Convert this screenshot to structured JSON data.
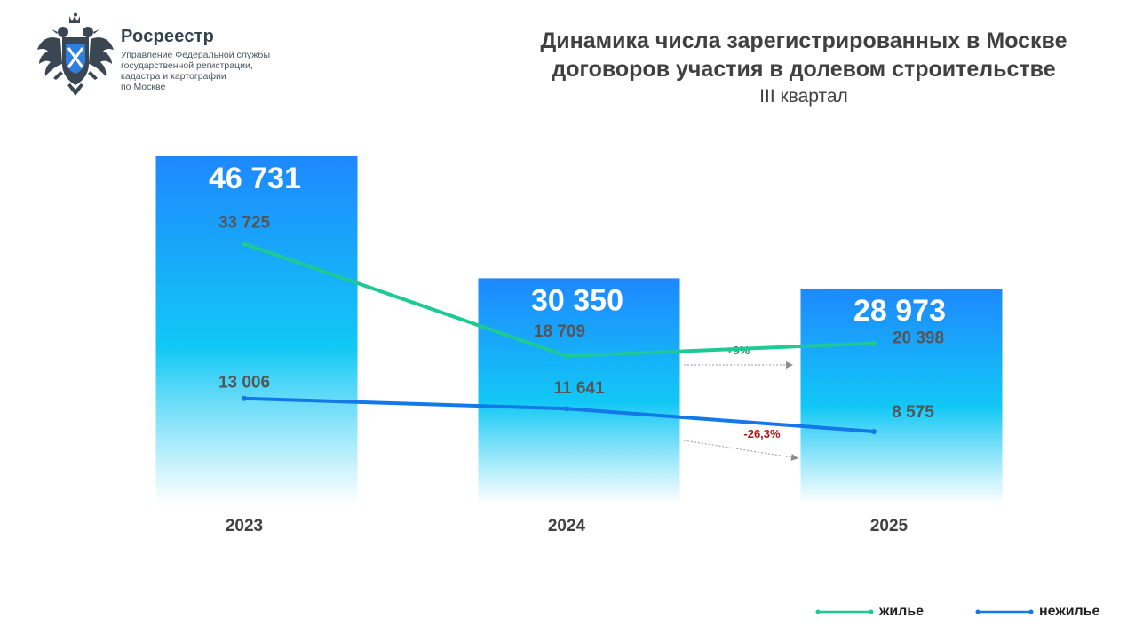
{
  "logo": {
    "org_name": "Росреестр",
    "org_lines": [
      "Управление Федеральной службы",
      "государственной регистрации,",
      "кадастра и картографии",
      "по Москве"
    ]
  },
  "colors": {
    "bar_top": "#1e88ff",
    "bar_mid": "#12c8f5",
    "residential": "#1ec995",
    "nonresidential": "#1479e8",
    "text_dark": "#404040",
    "change_positive": "#198c5a",
    "change_negative": "#b01313"
  },
  "chart_data": {
    "type": "bar",
    "title": "Динамика числа зарегистрированных в Москве",
    "title_line2": "договоров участия в долевом строительстве",
    "subtitle": "III квартал",
    "categories": [
      "2023",
      "2024",
      "2025"
    ],
    "totals": [
      46731,
      30350,
      28973
    ],
    "total_labels": [
      "46 731",
      "30 350",
      "28 973"
    ],
    "ylim": [
      0,
      50000
    ],
    "series": [
      {
        "name": "жилье",
        "values": [
          33725,
          18709,
          20398
        ],
        "labels": [
          "33 725",
          "18 709",
          "20 398"
        ]
      },
      {
        "name": "нежилье",
        "values": [
          13006,
          11641,
          8575
        ],
        "labels": [
          "13 006",
          "11 641",
          "8 575"
        ]
      }
    ],
    "changes": [
      {
        "series": "жилье",
        "from": "2024",
        "to": "2025",
        "label": "+9%"
      },
      {
        "series": "нежилье",
        "from": "2024",
        "to": "2025",
        "label": "-26,3%"
      }
    ],
    "legend": "bottom-right"
  }
}
